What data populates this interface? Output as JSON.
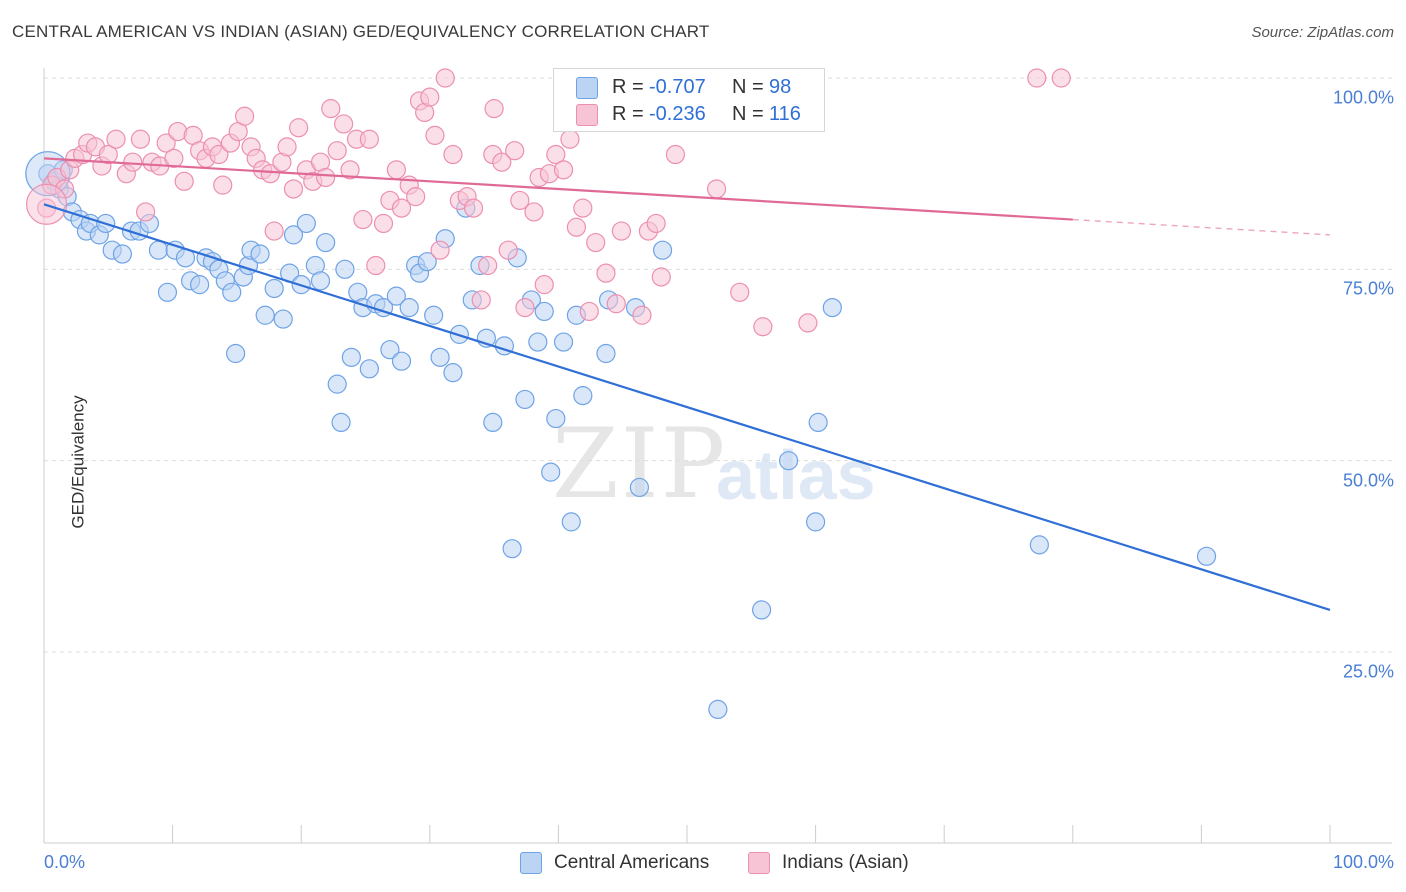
{
  "title": "CENTRAL AMERICAN VS INDIAN (ASIAN) GED/EQUIVALENCY CORRELATION CHART",
  "source": "Source: ZipAtlas.com",
  "watermark": {
    "zip": "ZIP",
    "atlas": "atlas"
  },
  "colors": {
    "blue": "#6fa3e6",
    "blue_fill": "#bcd4f4",
    "blue_line": "#2f6fd6",
    "pink": "#ec8fb0",
    "pink_fill": "#f7c4d6",
    "pink_line": "#e06a96",
    "grid": "#dddddd",
    "tick_text": "#4a7fd4"
  },
  "stats": [
    {
      "r_label": "R =",
      "r": "-0.707",
      "n_label": "N =",
      "n": "98",
      "color": "blue"
    },
    {
      "r_label": "R =",
      "r": "-0.236",
      "n_label": "N =",
      "n": "116",
      "color": "pink"
    }
  ],
  "legend": [
    {
      "label": "Central Americans",
      "color": "blue"
    },
    {
      "label": "Indians (Asian)",
      "color": "pink"
    }
  ],
  "chart_data": {
    "type": "scatter",
    "title": "CENTRAL AMERICAN VS INDIAN (ASIAN) GED/EQUIVALENCY CORRELATION CHART",
    "xlabel": "",
    "ylabel": "GED/Equivalency",
    "xlim": [
      0,
      100
    ],
    "ylim": [
      0,
      105
    ],
    "x_ticks": [
      "0.0%",
      "100.0%"
    ],
    "y_ticks": [
      {
        "value": 100,
        "label": "100.0%"
      },
      {
        "value": 75,
        "label": "75.0%"
      },
      {
        "value": 50,
        "label": "50.0%"
      },
      {
        "value": 25,
        "label": "25.0%"
      }
    ],
    "grid": "horizontal dashed",
    "legend_position": "bottom-center",
    "series": [
      {
        "name": "Central Americans",
        "color": "blue",
        "trend": {
          "x": [
            0,
            100
          ],
          "y": [
            83.5,
            30.5
          ],
          "dashed_from": null
        },
        "points": [
          [
            0.3,
            87.5
          ],
          [
            0.8,
            86.5
          ],
          [
            1.2,
            85.5
          ],
          [
            1.5,
            88
          ],
          [
            1.8,
            84.5
          ],
          [
            2.2,
            82.5
          ],
          [
            2.8,
            81.5
          ],
          [
            3.3,
            80
          ],
          [
            3.6,
            81
          ],
          [
            4.3,
            79.5
          ],
          [
            4.8,
            81
          ],
          [
            5.3,
            77.5
          ],
          [
            6.1,
            77
          ],
          [
            6.8,
            80
          ],
          [
            7.4,
            80
          ],
          [
            8.2,
            81
          ],
          [
            8.9,
            77.5
          ],
          [
            9.6,
            72
          ],
          [
            10.2,
            77.5
          ],
          [
            11.0,
            76.5
          ],
          [
            11.4,
            73.5
          ],
          [
            12.1,
            73
          ],
          [
            12.6,
            76.5
          ],
          [
            13.1,
            76
          ],
          [
            13.6,
            75
          ],
          [
            14.1,
            73.5
          ],
          [
            14.6,
            72
          ],
          [
            14.9,
            64
          ],
          [
            15.5,
            74
          ],
          [
            15.9,
            75.5
          ],
          [
            16.1,
            77.5
          ],
          [
            16.8,
            77
          ],
          [
            17.2,
            69
          ],
          [
            17.9,
            72.5
          ],
          [
            18.6,
            68.5
          ],
          [
            19.1,
            74.5
          ],
          [
            19.4,
            79.5
          ],
          [
            20.0,
            73
          ],
          [
            20.4,
            81
          ],
          [
            21.1,
            75.5
          ],
          [
            21.5,
            73.5
          ],
          [
            21.9,
            78.5
          ],
          [
            22.8,
            60
          ],
          [
            23.1,
            55
          ],
          [
            23.4,
            75
          ],
          [
            23.9,
            63.5
          ],
          [
            24.4,
            72
          ],
          [
            24.8,
            70
          ],
          [
            25.3,
            62
          ],
          [
            25.8,
            70.5
          ],
          [
            26.4,
            70
          ],
          [
            26.9,
            64.5
          ],
          [
            27.4,
            71.5
          ],
          [
            27.8,
            63
          ],
          [
            28.4,
            70
          ],
          [
            28.9,
            75.5
          ],
          [
            29.2,
            74.5
          ],
          [
            29.8,
            76
          ],
          [
            30.3,
            69
          ],
          [
            30.8,
            63.5
          ],
          [
            31.2,
            79
          ],
          [
            31.8,
            61.5
          ],
          [
            32.3,
            66.5
          ],
          [
            32.8,
            83
          ],
          [
            33.3,
            71
          ],
          [
            33.9,
            75.5
          ],
          [
            34.4,
            66
          ],
          [
            34.9,
            55
          ],
          [
            35.8,
            65
          ],
          [
            36.4,
            38.5
          ],
          [
            36.8,
            76.5
          ],
          [
            37.4,
            58
          ],
          [
            37.9,
            71
          ],
          [
            38.4,
            65.5
          ],
          [
            38.9,
            69.5
          ],
          [
            39.4,
            48.5
          ],
          [
            39.8,
            55.5
          ],
          [
            40.4,
            65.5
          ],
          [
            41.0,
            42
          ],
          [
            41.4,
            69
          ],
          [
            41.9,
            58.5
          ],
          [
            43.7,
            64
          ],
          [
            43.9,
            71
          ],
          [
            46.0,
            70
          ],
          [
            46.3,
            46.5
          ],
          [
            48.1,
            77.5
          ],
          [
            52.4,
            17.5
          ],
          [
            55.8,
            30.5
          ],
          [
            57.9,
            50
          ],
          [
            60.0,
            42
          ],
          [
            60.2,
            55
          ],
          [
            61.3,
            70
          ],
          [
            77.4,
            39
          ],
          [
            90.4,
            37.5
          ]
        ]
      },
      {
        "name": "Indians (Asian)",
        "color": "pink",
        "trend": {
          "x": [
            0,
            100
          ],
          "y": [
            89.5,
            79.5
          ],
          "dashed_from": 80
        },
        "points": [
          [
            0.2,
            83
          ],
          [
            0.6,
            86
          ],
          [
            1.0,
            87
          ],
          [
            1.6,
            85.5
          ],
          [
            2.0,
            88
          ],
          [
            2.4,
            89.5
          ],
          [
            3.0,
            90
          ],
          [
            3.4,
            91.5
          ],
          [
            4.0,
            91
          ],
          [
            4.5,
            88.5
          ],
          [
            5.0,
            90
          ],
          [
            5.6,
            92
          ],
          [
            6.4,
            87.5
          ],
          [
            6.9,
            89
          ],
          [
            7.5,
            92
          ],
          [
            7.9,
            82.5
          ],
          [
            8.4,
            89
          ],
          [
            9.0,
            88.5
          ],
          [
            9.5,
            91.5
          ],
          [
            10.1,
            89.5
          ],
          [
            10.4,
            93
          ],
          [
            10.9,
            86.5
          ],
          [
            11.6,
            92.5
          ],
          [
            12.1,
            90.5
          ],
          [
            12.6,
            89.5
          ],
          [
            13.1,
            91
          ],
          [
            13.6,
            90
          ],
          [
            13.9,
            86
          ],
          [
            14.5,
            91.5
          ],
          [
            15.1,
            93
          ],
          [
            15.6,
            95
          ],
          [
            16.1,
            91
          ],
          [
            16.5,
            89.5
          ],
          [
            17.0,
            88
          ],
          [
            17.6,
            87.5
          ],
          [
            17.9,
            80
          ],
          [
            18.5,
            89
          ],
          [
            18.9,
            91
          ],
          [
            19.4,
            85.5
          ],
          [
            19.8,
            93.5
          ],
          [
            20.4,
            88
          ],
          [
            20.9,
            86.5
          ],
          [
            21.5,
            89
          ],
          [
            21.9,
            87
          ],
          [
            22.3,
            96
          ],
          [
            22.8,
            90.5
          ],
          [
            23.3,
            94
          ],
          [
            23.8,
            88
          ],
          [
            24.3,
            92
          ],
          [
            24.8,
            81.5
          ],
          [
            25.3,
            92
          ],
          [
            25.8,
            75.5
          ],
          [
            26.4,
            81
          ],
          [
            26.9,
            84
          ],
          [
            27.4,
            88
          ],
          [
            27.8,
            83
          ],
          [
            28.4,
            86
          ],
          [
            28.9,
            84.5
          ],
          [
            29.2,
            97
          ],
          [
            29.6,
            95.5
          ],
          [
            30.0,
            97.5
          ],
          [
            30.4,
            92.5
          ],
          [
            30.8,
            77.5
          ],
          [
            31.2,
            100
          ],
          [
            31.8,
            90
          ],
          [
            32.3,
            84
          ],
          [
            32.9,
            84.5
          ],
          [
            33.4,
            83
          ],
          [
            34.0,
            71
          ],
          [
            34.5,
            75.5
          ],
          [
            34.9,
            90
          ],
          [
            35.6,
            89
          ],
          [
            36.1,
            77.5
          ],
          [
            36.6,
            90.5
          ],
          [
            37.0,
            84
          ],
          [
            37.4,
            70
          ],
          [
            38.1,
            82.5
          ],
          [
            38.5,
            87
          ],
          [
            38.9,
            73
          ],
          [
            39.3,
            87.5
          ],
          [
            39.8,
            90
          ],
          [
            40.4,
            88
          ],
          [
            40.9,
            92
          ],
          [
            41.4,
            80.5
          ],
          [
            41.9,
            83
          ],
          [
            42.4,
            69.5
          ],
          [
            42.9,
            78.5
          ],
          [
            43.7,
            74.5
          ],
          [
            44.5,
            70.5
          ],
          [
            44.9,
            80
          ],
          [
            46.1,
            99.5
          ],
          [
            46.5,
            69
          ],
          [
            47.0,
            80
          ],
          [
            47.6,
            81
          ],
          [
            48.0,
            74
          ],
          [
            49.1,
            90
          ],
          [
            52.3,
            85.5
          ],
          [
            54.1,
            72
          ],
          [
            55.9,
            67.5
          ],
          [
            58.1,
            96.5
          ],
          [
            77.2,
            100
          ],
          [
            79.1,
            100
          ],
          [
            59.4,
            68
          ],
          [
            35.0,
            96
          ]
        ]
      }
    ]
  }
}
